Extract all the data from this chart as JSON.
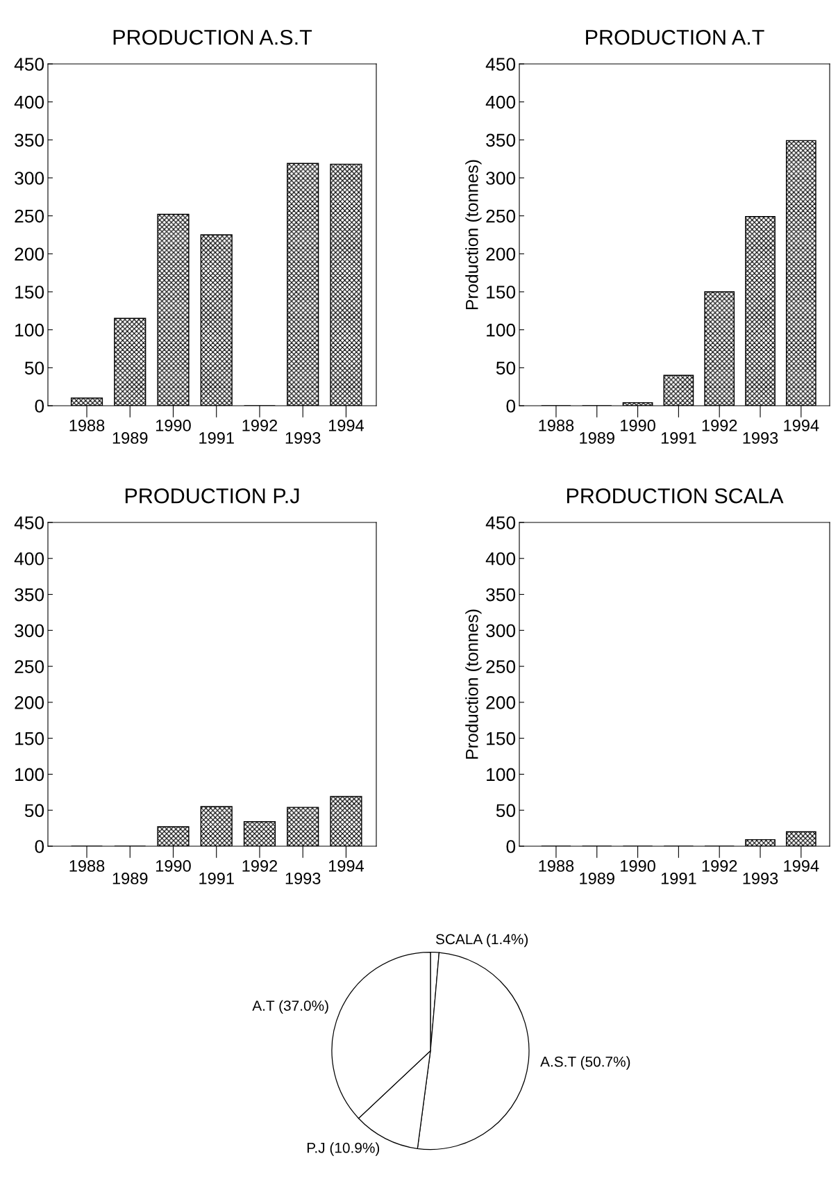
{
  "chart_data": [
    {
      "type": "bar",
      "title": "PRODUCTION A.S.T",
      "categories": [
        "1988",
        "1989",
        "1990",
        "1991",
        "1992",
        "1993",
        "1994"
      ],
      "values": [
        10,
        115,
        252,
        225,
        0,
        319,
        318
      ],
      "color": "#000000",
      "ylim": [
        0,
        450
      ],
      "yticks": [
        0,
        50,
        100,
        150,
        200,
        250,
        300,
        350,
        400,
        450
      ],
      "grid": false
    },
    {
      "type": "bar",
      "title": "PRODUCTION A.T",
      "ylabel": "Production (tonnes)",
      "categories": [
        "1988",
        "1989",
        "1990",
        "1991",
        "1992",
        "1993",
        "1994"
      ],
      "values": [
        0,
        0,
        4,
        40,
        150,
        249,
        349
      ],
      "color": "#000000",
      "ylim": [
        0,
        450
      ],
      "yticks": [
        0,
        50,
        100,
        150,
        200,
        250,
        300,
        350,
        400,
        450
      ],
      "grid": false
    },
    {
      "type": "bar",
      "title": "PRODUCTION P.J",
      "categories": [
        "1988",
        "1989",
        "1990",
        "1991",
        "1992",
        "1993",
        "1994"
      ],
      "values": [
        0,
        0,
        27,
        55,
        34,
        54,
        69
      ],
      "color": "#000000",
      "ylim": [
        0,
        450
      ],
      "yticks": [
        0,
        50,
        100,
        150,
        200,
        250,
        300,
        350,
        400,
        450
      ],
      "grid": false
    },
    {
      "type": "bar",
      "title": "PRODUCTION SCALA",
      "ylabel": "Production (tonnes)",
      "categories": [
        "1988",
        "1989",
        "1990",
        "1991",
        "1992",
        "1993",
        "1994"
      ],
      "values": [
        0,
        0,
        0,
        0,
        0,
        9,
        20
      ],
      "color": "#000000",
      "ylim": [
        0,
        450
      ],
      "yticks": [
        0,
        50,
        100,
        150,
        200,
        250,
        300,
        350,
        400,
        450
      ],
      "grid": false
    },
    {
      "type": "pie",
      "categories": [
        "SCALA (1.4%)",
        "A.S.T (50.7%)",
        "P.J (10.9%)",
        "A.T (37.0%)"
      ],
      "values": [
        1.4,
        50.7,
        10.9,
        37.0
      ],
      "colors": [
        "#ffffff",
        "#ffffff",
        "#ffffff",
        "#ffffff"
      ]
    }
  ]
}
